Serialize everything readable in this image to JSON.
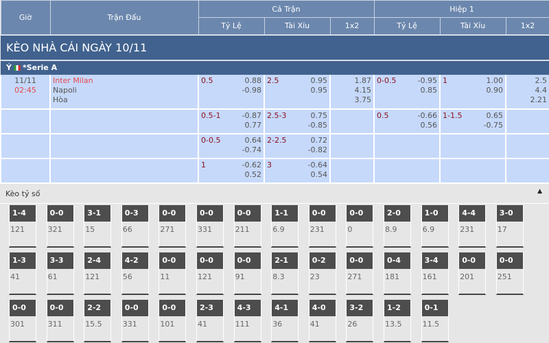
{
  "header": {
    "gio": "Giờ",
    "tran_dau": "Trận Đấu",
    "ca_tran": "Cả Trận",
    "hiep1": "Hiệp 1",
    "ty_le": "Tỷ Lệ",
    "tai_xiu": "Tài Xỉu",
    "x12": "1x2"
  },
  "title": "KÈO NHÀ CÁI NGÀY 10/11",
  "league": {
    "country": "Ý",
    "name": "*Serie A"
  },
  "match": {
    "date": "11/11",
    "time": "02:45",
    "home": "Inter Milan",
    "away": "Napoli",
    "draw": "Hòa"
  },
  "rows": [
    {
      "ft_hdp": "0.5",
      "ft_hdp_o": [
        "0.88",
        "-0.98"
      ],
      "ft_ou": "2.5",
      "ft_ou_o": [
        "0.95",
        "0.95"
      ],
      "ft_1x2": [
        "1.87",
        "4.15",
        "3.75"
      ],
      "h1_hdp": "0-0.5",
      "h1_hdp_o": [
        "-0.95",
        "0.85"
      ],
      "h1_ou": "1",
      "h1_ou_o": [
        "1.00",
        "0.90"
      ],
      "h1_1x2": [
        "2.5",
        "4.4",
        "2.21"
      ]
    },
    {
      "ft_hdp": "0.5-1",
      "ft_hdp_o": [
        "-0.87",
        "0.77"
      ],
      "ft_ou": "2.5-3",
      "ft_ou_o": [
        "0.75",
        "-0.85"
      ],
      "h1_hdp": "0.5",
      "h1_hdp_o": [
        "-0.66",
        "0.56"
      ],
      "h1_ou": "1-1.5",
      "h1_ou_o": [
        "0.65",
        "-0.75"
      ]
    },
    {
      "ft_hdp": "0-0.5",
      "ft_hdp_o": [
        "0.64",
        "-0.74"
      ],
      "ft_ou": "2-2.5",
      "ft_ou_o": [
        "0.72",
        "-0.82"
      ]
    },
    {
      "ft_hdp": "1",
      "ft_hdp_o": [
        "-0.62",
        "0.52"
      ],
      "ft_ou": "3",
      "ft_ou_o": [
        "-0.64",
        "0.54"
      ]
    }
  ],
  "correct_score": {
    "label": "Kèo tỷ số",
    "items": [
      [
        "1-4",
        "121"
      ],
      [
        "0-0",
        "321"
      ],
      [
        "3-1",
        "15"
      ],
      [
        "0-3",
        "66"
      ],
      [
        "0-0",
        "271"
      ],
      [
        "0-0",
        "331"
      ],
      [
        "0-0",
        "211"
      ],
      [
        "1-1",
        "6.9"
      ],
      [
        "0-0",
        "231"
      ],
      [
        "0-0",
        "0"
      ],
      [
        "2-0",
        "8.9"
      ],
      [
        "1-0",
        "6.9"
      ],
      [
        "4-4",
        "231"
      ],
      [
        "3-0",
        "17"
      ],
      [
        "1-3",
        "41"
      ],
      [
        "3-3",
        "61"
      ],
      [
        "2-4",
        "121"
      ],
      [
        "4-2",
        "56"
      ],
      [
        "0-0",
        "11"
      ],
      [
        "0-0",
        "121"
      ],
      [
        "0-0",
        "91"
      ],
      [
        "2-1",
        "8.3"
      ],
      [
        "0-2",
        "23"
      ],
      [
        "0-0",
        "271"
      ],
      [
        "0-4",
        "181"
      ],
      [
        "3-4",
        "161"
      ],
      [
        "0-0",
        "201"
      ],
      [
        "0-0",
        "251"
      ],
      [
        "0-0",
        "301"
      ],
      [
        "0-0",
        "311"
      ],
      [
        "2-2",
        "15.5"
      ],
      [
        "0-0",
        "331"
      ],
      [
        "0-0",
        "101"
      ],
      [
        "2-3",
        "41"
      ],
      [
        "4-3",
        "111"
      ],
      [
        "4-1",
        "36"
      ],
      [
        "4-0",
        "41"
      ],
      [
        "3-2",
        "26"
      ],
      [
        "1-2",
        "13.5"
      ],
      [
        "0-1",
        "11.5"
      ]
    ],
    "per_row": 14
  }
}
